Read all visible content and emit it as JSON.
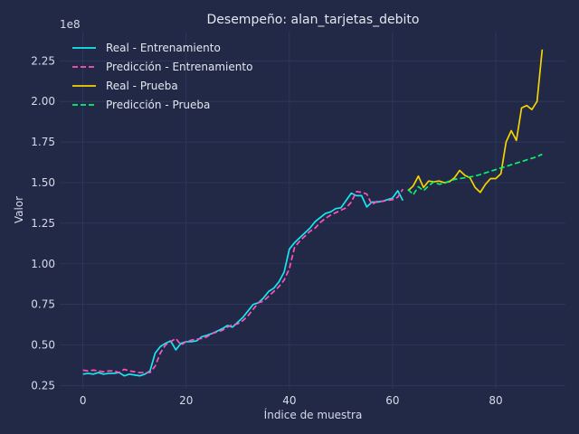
{
  "chart_data": {
    "type": "line",
    "title": "Desempeño: alan_tarjetas_debito",
    "xlabel": "Índice de muestra",
    "ylabel": "Valor",
    "y_scale_label": "1e8",
    "xlim": [
      -4.5,
      93.5
    ],
    "ylim": [
      0.23,
      2.43
    ],
    "x_ticks": [
      0,
      20,
      40,
      60,
      80
    ],
    "y_ticks": [
      0.25,
      0.5,
      0.75,
      1.0,
      1.25,
      1.5,
      1.75,
      2.0,
      2.25
    ],
    "y_tick_labels": [
      "0.25",
      "0.50",
      "0.75",
      "1.00",
      "1.25",
      "1.50",
      "1.75",
      "2.00",
      "2.25"
    ],
    "grid": true,
    "legend_position": "top-left",
    "series": [
      {
        "name": "Real - Entrenamiento",
        "color": "#18e7f3",
        "dash": "solid",
        "x_start": 0,
        "values": [
          0.32,
          0.325,
          0.32,
          0.33,
          0.32,
          0.325,
          0.325,
          0.33,
          0.31,
          0.32,
          0.315,
          0.31,
          0.32,
          0.34,
          0.45,
          0.49,
          0.51,
          0.525,
          0.47,
          0.51,
          0.52,
          0.52,
          0.525,
          0.55,
          0.56,
          0.57,
          0.585,
          0.6,
          0.62,
          0.61,
          0.64,
          0.67,
          0.71,
          0.75,
          0.76,
          0.79,
          0.83,
          0.85,
          0.89,
          0.95,
          1.09,
          1.13,
          1.16,
          1.19,
          1.22,
          1.26,
          1.285,
          1.31,
          1.32,
          1.34,
          1.345,
          1.39,
          1.435,
          1.42,
          1.42,
          1.35,
          1.38,
          1.38,
          1.385,
          1.395,
          1.405,
          1.45,
          1.39
        ]
      },
      {
        "name": "Predicción - Entrenamiento",
        "color": "#fe53bb",
        "dash": "dashed",
        "x_start": 0,
        "values": [
          0.345,
          0.34,
          0.345,
          0.34,
          0.335,
          0.34,
          0.34,
          0.33,
          0.35,
          0.34,
          0.335,
          0.33,
          0.33,
          0.33,
          0.37,
          0.45,
          0.5,
          0.52,
          0.54,
          0.5,
          0.52,
          0.53,
          0.535,
          0.54,
          0.55,
          0.57,
          0.58,
          0.59,
          0.61,
          0.625,
          0.63,
          0.65,
          0.68,
          0.72,
          0.76,
          0.77,
          0.8,
          0.83,
          0.86,
          0.9,
          0.97,
          1.1,
          1.14,
          1.17,
          1.2,
          1.22,
          1.255,
          1.28,
          1.3,
          1.315,
          1.33,
          1.345,
          1.38,
          1.445,
          1.44,
          1.43,
          1.365,
          1.385,
          1.385,
          1.39,
          1.395,
          1.41,
          1.46
        ]
      },
      {
        "name": "Real - Prueba",
        "color": "#f5d300",
        "dash": "solid",
        "x_start": 63,
        "values": [
          1.45,
          1.48,
          1.54,
          1.47,
          1.51,
          1.505,
          1.51,
          1.5,
          1.505,
          1.53,
          1.575,
          1.545,
          1.53,
          1.47,
          1.44,
          1.49,
          1.525,
          1.525,
          1.555,
          1.75,
          1.82,
          1.76,
          1.96,
          1.975,
          1.95,
          2.0,
          2.32
        ]
      },
      {
        "name": "Predicción - Prueba",
        "color": "#08f26e",
        "dash": "dashed",
        "x_start": 63,
        "values": [
          1.46,
          1.425,
          1.475,
          1.45,
          1.48,
          1.505,
          1.49,
          1.495,
          1.51,
          1.52,
          1.525,
          1.53,
          1.535,
          1.54,
          1.55,
          1.56,
          1.57,
          1.58,
          1.59,
          1.6,
          1.61,
          1.62,
          1.63,
          1.64,
          1.65,
          1.66,
          1.675
        ]
      }
    ]
  }
}
